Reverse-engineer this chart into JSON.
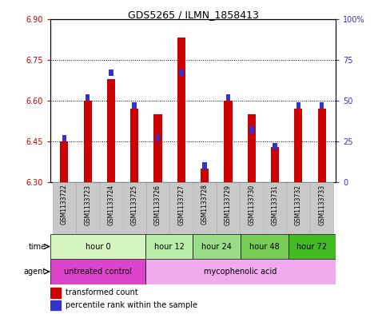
{
  "title": "GDS5265 / ILMN_1858413",
  "samples": [
    "GSM1133722",
    "GSM1133723",
    "GSM1133724",
    "GSM1133725",
    "GSM1133726",
    "GSM1133727",
    "GSM1133728",
    "GSM1133729",
    "GSM1133730",
    "GSM1133731",
    "GSM1133732",
    "GSM1133733"
  ],
  "red_values": [
    6.45,
    6.6,
    6.68,
    6.57,
    6.55,
    6.83,
    6.35,
    6.6,
    6.55,
    6.43,
    6.57,
    6.57
  ],
  "blue_values": [
    25,
    50,
    65,
    45,
    25,
    65,
    8,
    50,
    30,
    20,
    45,
    45
  ],
  "ylim_left": [
    6.3,
    6.9
  ],
  "ylim_right": [
    0,
    100
  ],
  "yticks_left": [
    6.3,
    6.45,
    6.6,
    6.75,
    6.9
  ],
  "yticks_right": [
    0,
    25,
    50,
    75,
    100
  ],
  "ytick_labels_right": [
    "0",
    "25",
    "50",
    "75",
    "100%"
  ],
  "bar_color_red": "#cc0000",
  "bar_color_blue": "#3333cc",
  "base_value": 6.3,
  "time_groups": [
    {
      "label": "hour 0",
      "start": 0,
      "end": 4,
      "color": "#d4f5c0"
    },
    {
      "label": "hour 12",
      "start": 4,
      "end": 6,
      "color": "#b8eeaa"
    },
    {
      "label": "hour 24",
      "start": 6,
      "end": 8,
      "color": "#99dd88"
    },
    {
      "label": "hour 48",
      "start": 8,
      "end": 10,
      "color": "#77cc55"
    },
    {
      "label": "hour 72",
      "start": 10,
      "end": 12,
      "color": "#44bb22"
    }
  ],
  "agent_groups": [
    {
      "label": "untreated control",
      "start": 0,
      "end": 4,
      "color": "#dd44cc"
    },
    {
      "label": "mycophenolic acid",
      "start": 4,
      "end": 12,
      "color": "#f0aaee"
    }
  ],
  "bg_color": "#ffffff",
  "sample_bg_color": "#c8c8c8",
  "left_tick_color": "#cc0000",
  "right_tick_color": "#3333cc"
}
